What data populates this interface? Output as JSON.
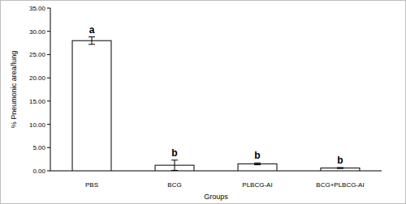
{
  "chart_data": {
    "type": "bar",
    "y_label": "% Pneumonic area/lung",
    "x_label": "Groups",
    "categories": [
      "PBS",
      "BCG",
      "PLBCG-AI",
      "BCG+PLBCG-AI"
    ],
    "values": [
      28.0,
      1.2,
      1.5,
      0.6
    ],
    "errors": [
      0.8,
      1.1,
      0.2,
      0.1
    ],
    "annotations": [
      "a",
      "b",
      "b",
      "b"
    ],
    "color": "#ffffff",
    "ylim": [
      0,
      35
    ],
    "yticks": [
      {
        "value": 0,
        "label": "0.00"
      },
      {
        "value": 5,
        "label": "5.00"
      },
      {
        "value": 10,
        "label": "10.00"
      },
      {
        "value": 15,
        "label": "15.00"
      },
      {
        "value": 20,
        "label": "20.00"
      },
      {
        "value": 25,
        "label": "25.00"
      },
      {
        "value": 30,
        "label": "30.00"
      },
      {
        "value": 35,
        "label": "35.00"
      }
    ],
    "grid": false
  }
}
